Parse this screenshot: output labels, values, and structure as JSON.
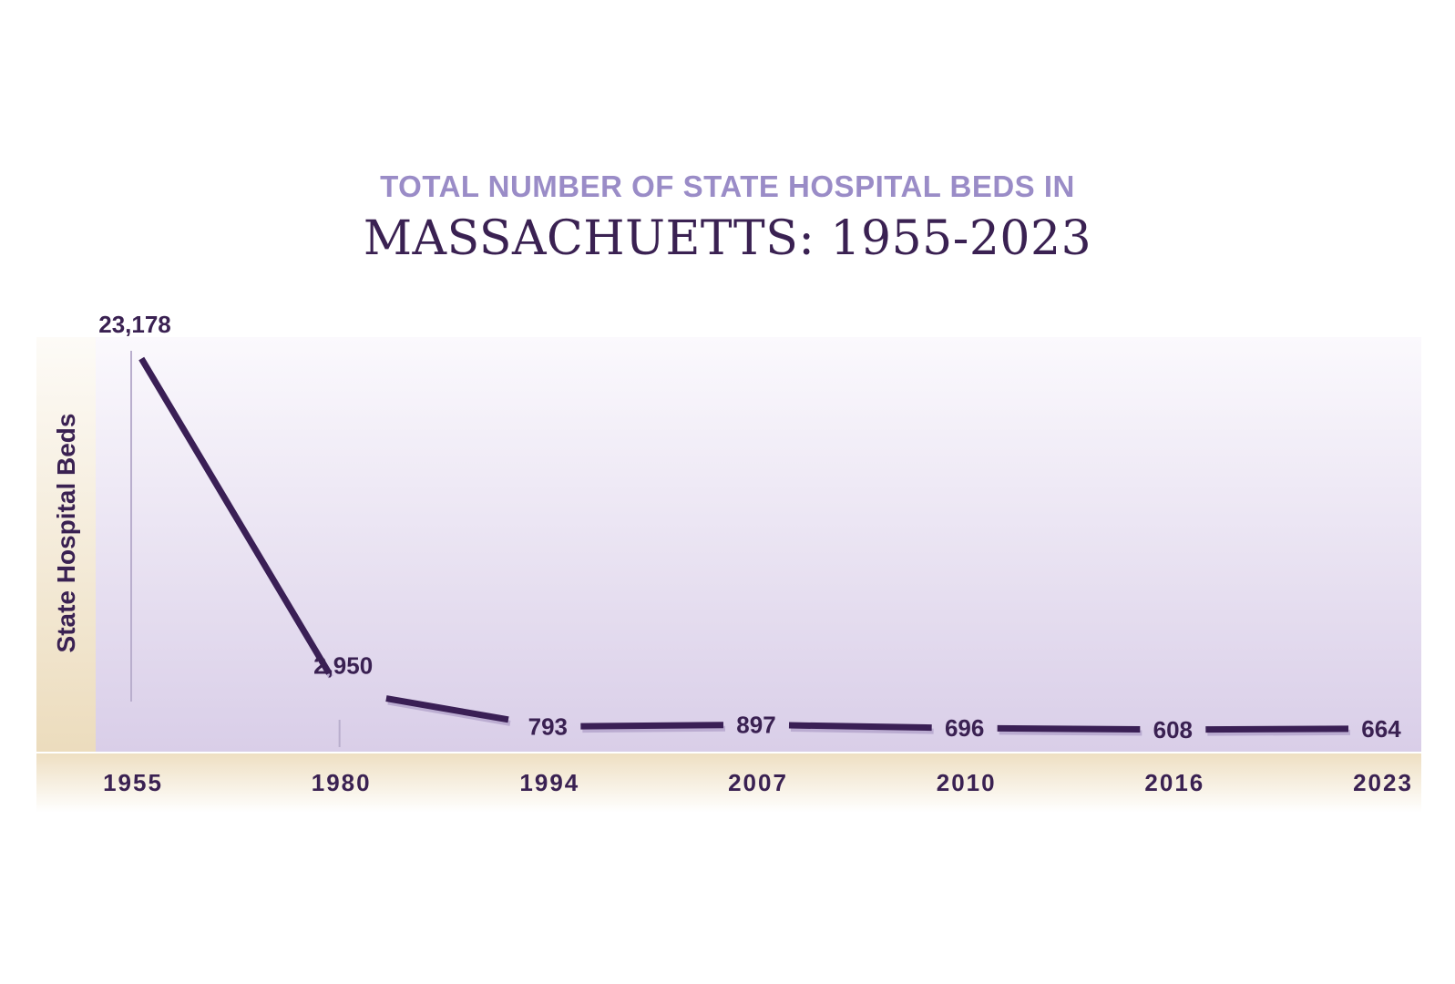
{
  "chart_data": {
    "type": "line",
    "title_top": "TOTAL NUMBER OF STATE HOSPITAL BEDS IN",
    "title_main": "MASSACHUETTS: 1955-2023",
    "ylabel": "State Hospital Beds",
    "xlabel": "",
    "categories": [
      "1955",
      "1980",
      "1994",
      "2007",
      "2010",
      "2016",
      "2023"
    ],
    "values": [
      23178,
      2950,
      793,
      897,
      696,
      608,
      664
    ],
    "value_labels": [
      "23,178",
      "2,950",
      "793",
      "897",
      "696",
      "608",
      "664"
    ],
    "ylim": [
      0,
      23178
    ],
    "grid": false,
    "legend": "none",
    "colors": {
      "line": "#3a1f55",
      "title_top": "#9a8cc7",
      "title_main": "#3a2152",
      "plot_top": "#f7f4fb",
      "plot_bottom": "#d9cee8",
      "axis_band": "#f1e4c8"
    }
  }
}
